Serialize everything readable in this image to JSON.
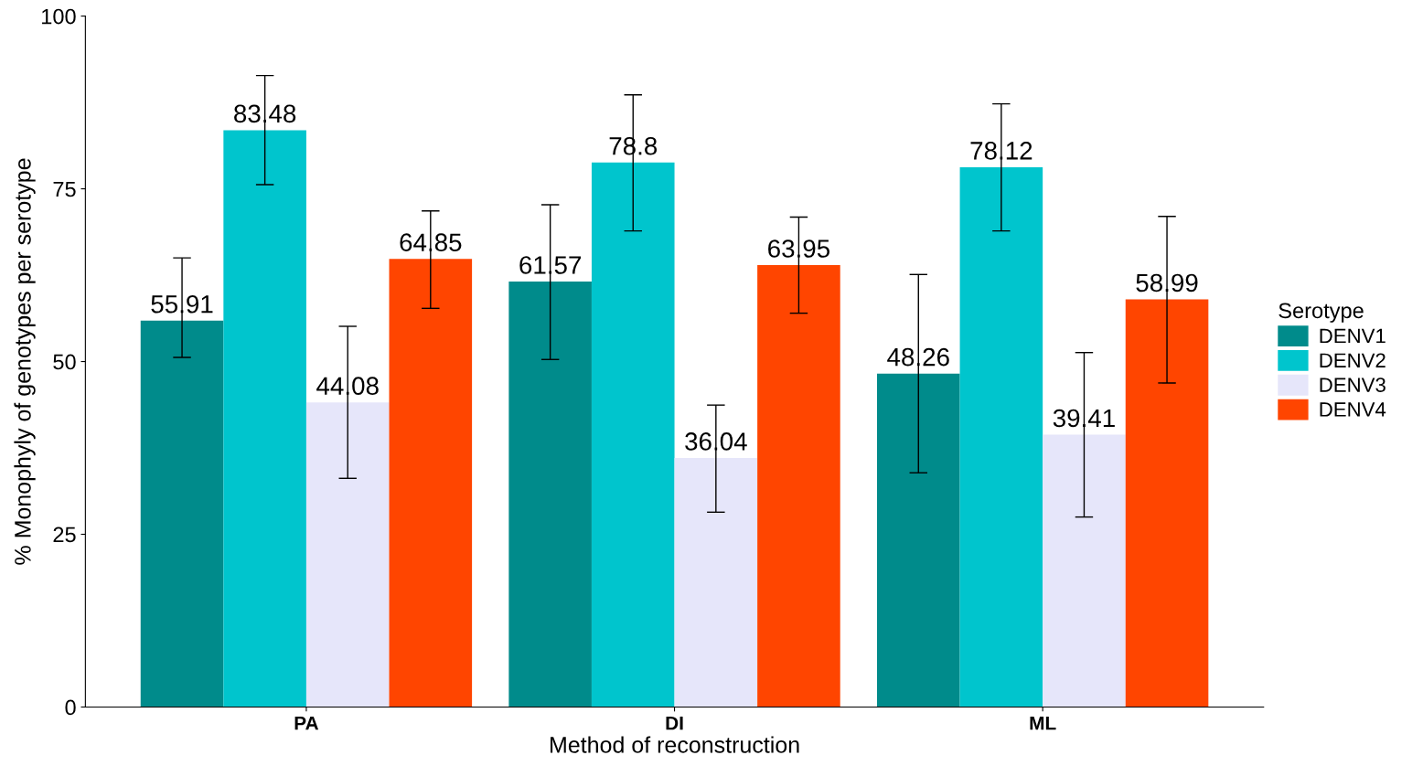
{
  "chart_data": {
    "type": "bar",
    "xlabel": "Method of reconstruction",
    "ylabel": "% Monophyly of genotypes per serotype",
    "legend_title": "Serotype",
    "categories": [
      "PA",
      "DI",
      "ML"
    ],
    "series": [
      {
        "name": "DENV1",
        "color": "#008b8b",
        "values": [
          55.91,
          61.57,
          48.26
        ],
        "errors": [
          [
            50.6,
            65.0
          ],
          [
            50.3,
            72.7
          ],
          [
            33.9,
            62.6
          ]
        ]
      },
      {
        "name": "DENV2",
        "color": "#00c5cd",
        "values": [
          83.48,
          78.8,
          78.12
        ],
        "errors": [
          [
            75.6,
            91.4
          ],
          [
            68.9,
            88.6
          ],
          [
            68.9,
            87.3
          ]
        ]
      },
      {
        "name": "DENV3",
        "color": "#e6e6fa",
        "values": [
          44.08,
          36.04,
          39.41
        ],
        "errors": [
          [
            33.1,
            55.1
          ],
          [
            28.2,
            43.7
          ],
          [
            27.5,
            51.3
          ]
        ]
      },
      {
        "name": "DENV4",
        "color": "#ff4500",
        "values": [
          64.85,
          63.95,
          58.99
        ],
        "errors": [
          [
            57.7,
            71.8
          ],
          [
            57.0,
            70.9
          ],
          [
            46.9,
            71.0
          ]
        ]
      }
    ],
    "ylim": [
      0,
      100
    ],
    "yticks": [
      0,
      25,
      50,
      75,
      100
    ],
    "data_labels": true,
    "legend": "right",
    "grid": false
  }
}
